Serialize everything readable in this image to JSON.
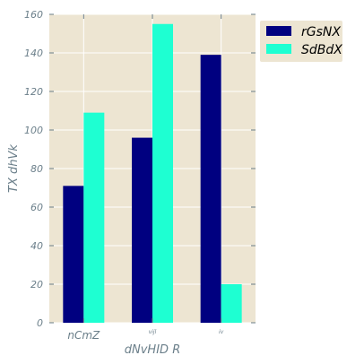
{
  "chart_data": {
    "type": "bar",
    "categories": [
      "nCmZ",
      "vijl",
      "iv"
    ],
    "series": [
      {
        "name": "rGsNX",
        "values": [
          71,
          96,
          139
        ],
        "color": "#000080"
      },
      {
        "name": "SdBdX",
        "values": [
          109,
          155,
          20
        ],
        "color": "#1effd2"
      }
    ],
    "xlabel": "dNvHID R",
    "ylabel": "TX dhVk",
    "ylim": [
      0,
      160
    ],
    "yticks": [
      0,
      20,
      40,
      60,
      80,
      100,
      120,
      140,
      160
    ],
    "grid": true,
    "legend_position": "top-right",
    "background": "#ede5d2",
    "grid_color": "#ffffff"
  }
}
